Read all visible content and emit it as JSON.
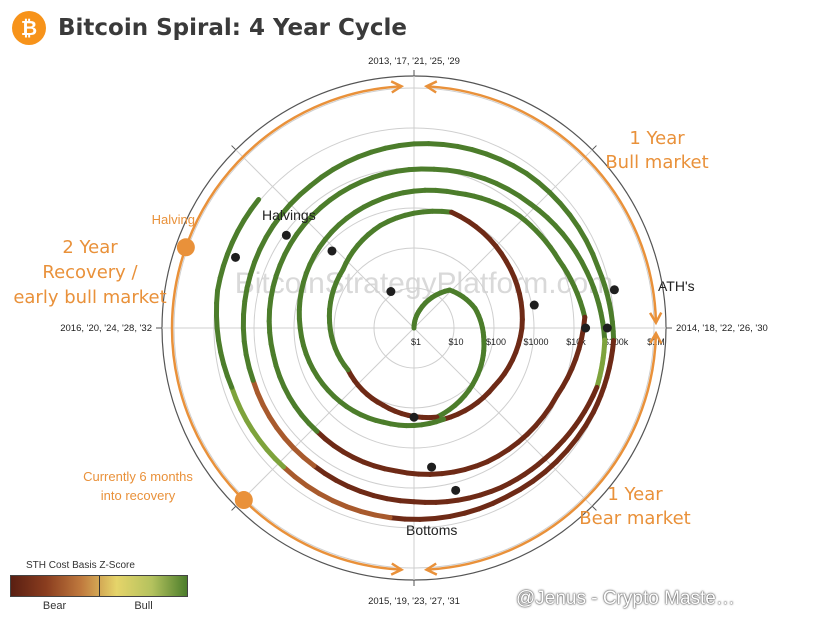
{
  "header": {
    "logo_symbol": "₿",
    "title": "Bitcoin Spiral: 4 Year Cycle"
  },
  "chart_data": {
    "type": "polar spiral",
    "title": "Bitcoin Spiral: 4 Year Cycle",
    "radial_axis_labels": [
      "$1",
      "$10",
      "$100",
      "$1000",
      "$10k",
      "$100k",
      "$1M"
    ],
    "angular_labels": {
      "top": "2013, '17, '21, '25, '29",
      "right": "2014, '18, '22, '26, '30",
      "bottom": "2015, '19, '23, '27, '31",
      "left": "2016, '20, '24, '28, '32"
    },
    "phase_labels": {
      "bull": "1 Year\nBull market",
      "bear": "1 Year\nBear market",
      "recovery": "2 Year\nRecovery /\nearly bull market",
      "halving": "Halving",
      "current": "Currently 6 months\ninto recovery"
    },
    "annotations": {
      "halvings": "Halvings",
      "aths": "ATH's",
      "bottoms": "Bottoms"
    },
    "background_text": "BitcoinStrategyPlatform.com",
    "cycles": [
      {
        "points": [
          [
            0.0,
            1
          ],
          [
            0.05,
            3
          ],
          [
            0.12,
            20
          ],
          [
            0.2,
            40
          ],
          [
            0.28,
            60
          ],
          [
            0.36,
            100
          ],
          [
            0.46,
            200
          ],
          [
            0.56,
            120
          ],
          [
            0.66,
            90
          ],
          [
            0.76,
            130
          ],
          [
            0.86,
            200
          ],
          [
            0.95,
            500
          ],
          [
            1.05,
            1100
          ],
          [
            1.15,
            700
          ],
          [
            1.25,
            500
          ],
          [
            1.35,
            300
          ],
          [
            1.45,
            250
          ],
          [
            1.55,
            300
          ],
          [
            1.65,
            450
          ],
          [
            1.75,
            700
          ],
          [
            1.85,
            1200
          ],
          [
            1.95,
            2000
          ],
          [
            2.05,
            3500
          ],
          [
            2.12,
            7000
          ],
          [
            2.18,
            10000
          ],
          [
            2.24,
            19000
          ],
          [
            2.32,
            9000
          ],
          [
            2.42,
            6500
          ],
          [
            2.52,
            4000
          ],
          [
            2.62,
            3500
          ],
          [
            2.72,
            3800
          ],
          [
            2.82,
            5000
          ],
          [
            2.92,
            7000
          ],
          [
            3.02,
            10000
          ],
          [
            3.12,
            18000
          ],
          [
            3.2,
            35000
          ],
          [
            3.26,
            60000
          ],
          [
            3.3,
            64000
          ],
          [
            3.36,
            45000
          ],
          [
            3.42,
            35000
          ],
          [
            3.5,
            22000
          ],
          [
            3.6,
            18000
          ],
          [
            3.7,
            17000
          ],
          [
            3.8,
            20000
          ],
          [
            3.9,
            25000
          ],
          [
            4.0,
            40000
          ],
          [
            4.1,
            60000
          ],
          [
            4.2,
            70000
          ],
          [
            4.26,
            100000
          ],
          [
            4.32,
            90000
          ],
          [
            4.42,
            65000
          ],
          [
            4.52,
            60000
          ],
          [
            4.62,
            58000
          ],
          [
            4.7,
            62000
          ],
          [
            4.78,
            100000
          ],
          [
            4.86,
            110000
          ]
        ]
      }
    ],
    "markers": {
      "halvings": [
        [
          0.91,
          12
        ],
        [
          1.87,
          650
        ],
        [
          2.85,
          8800
        ],
        [
          3.81,
          63000
        ]
      ],
      "aths": [
        [
          1.22,
          1150
        ],
        [
          2.25,
          19500
        ],
        [
          3.25,
          68000
        ],
        [
          4.22,
          126000
        ]
      ],
      "bottoms": [
        [
          1.5,
          170
        ],
        [
          2.48,
          3200
        ],
        [
          3.46,
          15500
        ]
      ]
    },
    "legend": {
      "title": "STH Cost Basis Z-Score",
      "low_label": "Bear",
      "high_label": "Bull"
    }
  },
  "watermark": {
    "text": "@Jenus - Crypto Maste…"
  }
}
